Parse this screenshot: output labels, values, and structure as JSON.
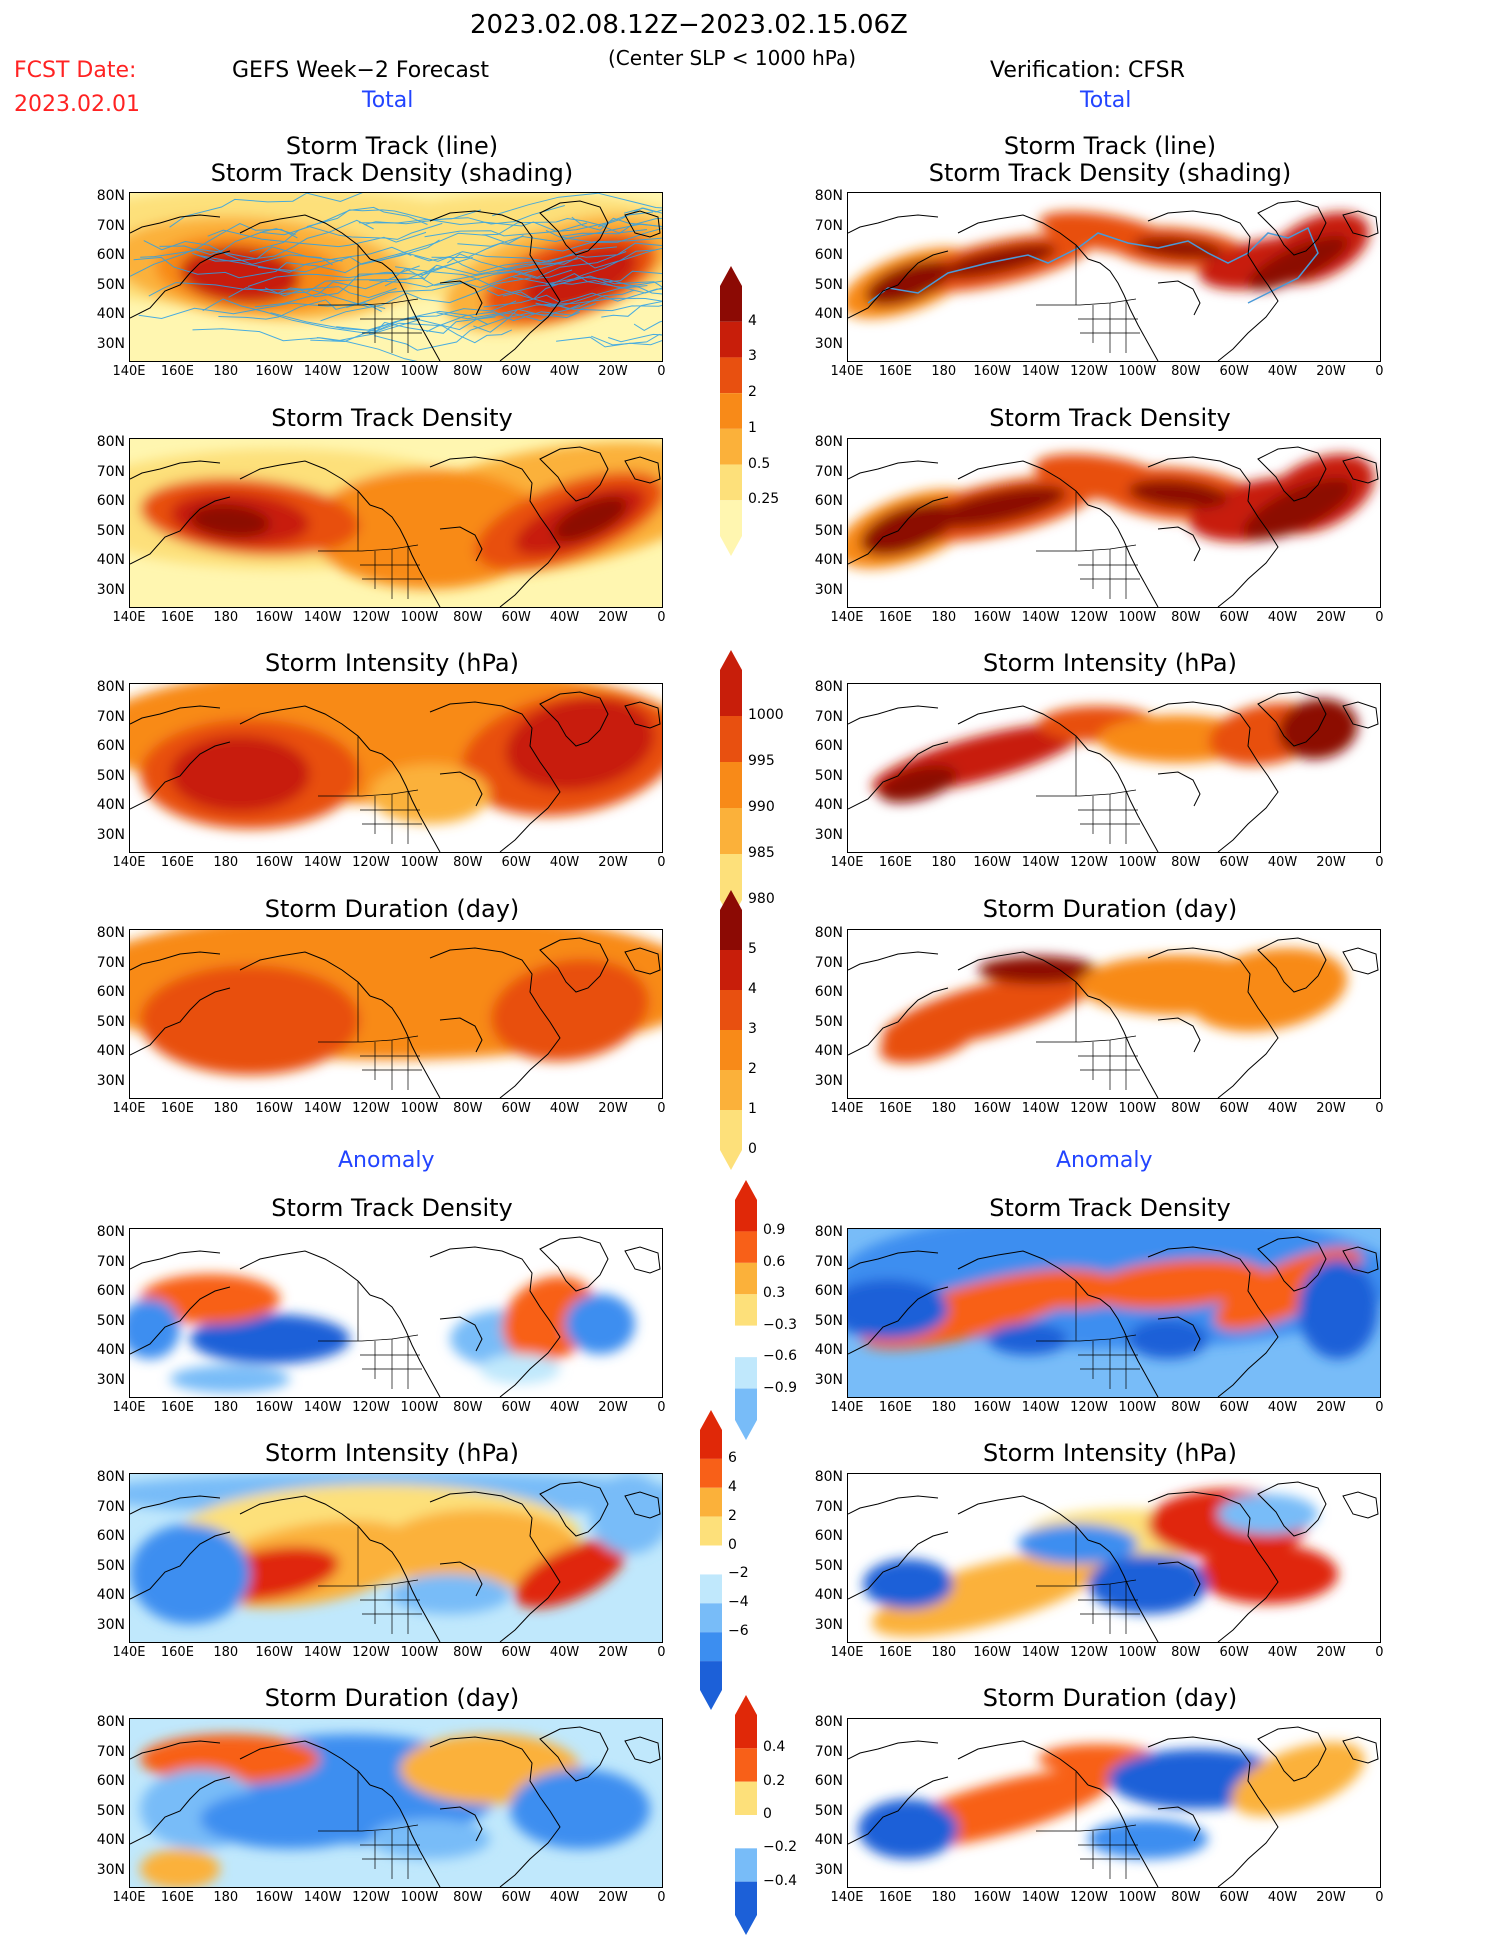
{
  "header": {
    "period": "2023.02.08.12Z−2023.02.15.06Z",
    "criterion": "(Center SLP < 1000 hPa)",
    "fcst_label": "FCST Date:",
    "fcst_date": "2023.02.01",
    "left_title": "GEFS Week−2 Forecast",
    "right_title": "Verification: CFSR",
    "total_label": "Total",
    "anomaly_label": "Anomaly"
  },
  "panel_titles": {
    "track_line": "Storm Track (line)",
    "track_density_shading": "Storm Track Density (shading)",
    "track_density": "Storm Track Density",
    "intensity": "Storm Intensity (hPa)",
    "duration": "Storm Duration (day)"
  },
  "axes": {
    "lat_ticks": [
      "80N",
      "70N",
      "60N",
      "50N",
      "40N",
      "30N"
    ],
    "lon_ticks": [
      "140E",
      "160E",
      "180",
      "160W",
      "140W",
      "120W",
      "100W",
      "80W",
      "60W",
      "40W",
      "20W",
      "0"
    ]
  },
  "colorbars": {
    "density": [
      "4",
      "3",
      "2",
      "1",
      "0.5",
      "0.25"
    ],
    "intensity": [
      "1000",
      "995",
      "990",
      "985",
      "980"
    ],
    "duration": [
      "5",
      "4",
      "3",
      "2",
      "1",
      "0"
    ],
    "density_anom": [
      "0.9",
      "0.6",
      "0.3",
      "−0.3",
      "−0.6",
      "−0.9"
    ],
    "intensity_anom": [
      "6",
      "4",
      "2",
      "0",
      "−2",
      "−4",
      "−6"
    ],
    "duration_anom": [
      "0.4",
      "0.2",
      "0",
      "−0.2",
      "−0.4"
    ]
  },
  "colors": {
    "total_scale": [
      "#fff6b0",
      "#fde07a",
      "#fbb13a",
      "#f88a18",
      "#e85010",
      "#c81e0a",
      "#8c0a04"
    ],
    "anom_scale": [
      "#1c60d8",
      "#3c8ef0",
      "#78bcf8",
      "#c0e8fc",
      "#ffffff",
      "#fde07a",
      "#fbb13a",
      "#f86018",
      "#e02808"
    ],
    "track_line": "#2aa0e8",
    "track_line_ens": "#4a9ad8"
  }
}
